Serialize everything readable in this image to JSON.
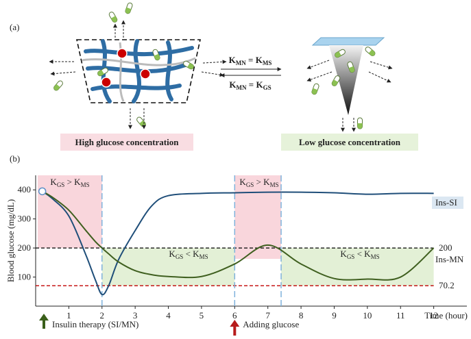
{
  "panel_a": {
    "label": "(a)",
    "equations": [
      {
        "parts": [
          "K",
          "MN",
          " = K",
          "MS"
        ]
      },
      {
        "parts": [
          "K",
          "MN",
          " = K",
          "GS"
        ]
      }
    ],
    "left_caption": "High glucose concentration",
    "right_caption": "Low glucose concentration"
  },
  "chart_data": {
    "type": "line",
    "panel_label": "(b)",
    "y_label": "Blood glucose (mg/dL)",
    "x_label": "Time (hour)",
    "x": [
      0.2,
      0.5,
      1,
      1.5,
      1.8,
      2,
      2.2,
      2.5,
      3,
      3.5,
      4,
      5,
      6,
      7,
      8,
      9,
      10,
      11,
      12
    ],
    "series": [
      {
        "name": "Ins-SI",
        "color": "#1f4e79",
        "values": [
          395,
          370,
          310,
          180,
          90,
          40,
          70,
          160,
          260,
          345,
          380,
          388,
          390,
          392,
          392,
          390,
          385,
          388,
          388
        ]
      },
      {
        "name": "Ins-MN",
        "color": "#3f5f1f",
        "values": [
          395,
          375,
          330,
          262,
          222,
          200,
          180,
          152,
          122,
          108,
          102,
          102,
          145,
          210,
          145,
          95,
          93,
          100,
          200
        ]
      }
    ],
    "xlim": [
      0,
      13
    ],
    "xticks": [
      1,
      2,
      3,
      4,
      5,
      6,
      7,
      8,
      9,
      10,
      11,
      12
    ],
    "ylim": [
      0,
      450
    ],
    "yticks": [
      100,
      200,
      300,
      400
    ],
    "hlines": [
      {
        "value": 200,
        "color": "#000000"
      },
      {
        "value": 70.2,
        "color": "#c00000"
      }
    ],
    "vlines": [
      2,
      6,
      7.4
    ],
    "regions": [
      {
        "parts": [
          "K",
          "GS",
          " > K",
          "MS"
        ]
      },
      {
        "parts": [
          "K",
          "GS",
          " < K",
          "MS"
        ]
      },
      {
        "parts": [
          "K",
          "GS",
          " > K",
          "MS"
        ]
      },
      {
        "parts": [
          "K",
          "GS",
          " < K",
          "MS"
        ]
      }
    ],
    "annotations": [
      "Insulin therapy (SI/MN)",
      "Adding glucose"
    ]
  }
}
